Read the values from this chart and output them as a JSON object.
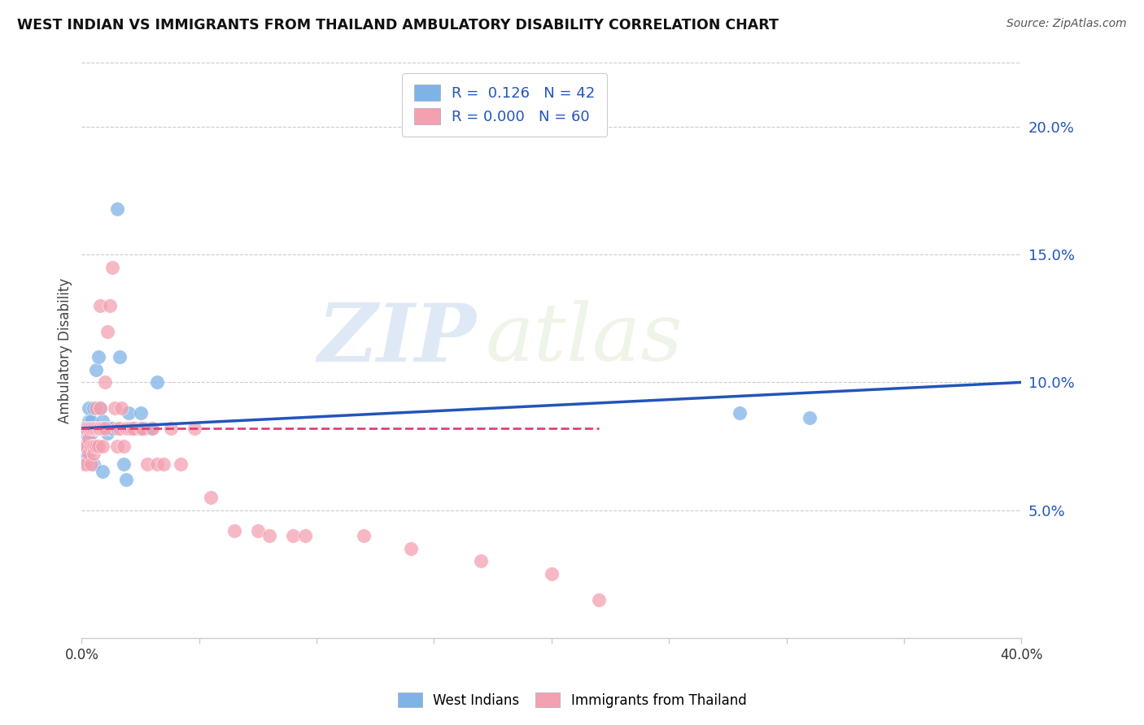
{
  "title": "WEST INDIAN VS IMMIGRANTS FROM THAILAND AMBULATORY DISABILITY CORRELATION CHART",
  "source": "Source: ZipAtlas.com",
  "ylabel": "Ambulatory Disability",
  "ylabel_right_ticks": [
    "20.0%",
    "15.0%",
    "10.0%",
    "5.0%"
  ],
  "ylabel_right_vals": [
    0.2,
    0.15,
    0.1,
    0.05
  ],
  "xlim": [
    0.0,
    0.4
  ],
  "ylim": [
    0.0,
    0.225
  ],
  "color_blue": "#7EB3E8",
  "color_pink": "#F4A0B0",
  "color_line_blue": "#2255BB",
  "color_line_pink": "#DD4477",
  "watermark_zip": "ZIP",
  "watermark_atlas": "atlas",
  "west_indians_x": [
    0.001,
    0.001,
    0.001,
    0.002,
    0.002,
    0.002,
    0.003,
    0.003,
    0.003,
    0.004,
    0.004,
    0.004,
    0.005,
    0.005,
    0.005,
    0.005,
    0.006,
    0.006,
    0.006,
    0.007,
    0.007,
    0.008,
    0.008,
    0.009,
    0.009,
    0.01,
    0.011,
    0.012,
    0.013,
    0.015,
    0.016,
    0.018,
    0.019,
    0.02,
    0.022,
    0.023,
    0.025,
    0.025,
    0.027,
    0.03,
    0.032,
    0.28,
    0.31
  ],
  "west_indians_y": [
    0.075,
    0.08,
    0.07,
    0.08,
    0.075,
    0.072,
    0.085,
    0.078,
    0.09,
    0.085,
    0.08,
    0.075,
    0.082,
    0.075,
    0.09,
    0.068,
    0.105,
    0.082,
    0.075,
    0.11,
    0.082,
    0.082,
    0.09,
    0.065,
    0.085,
    0.082,
    0.08,
    0.082,
    0.082,
    0.168,
    0.11,
    0.068,
    0.062,
    0.088,
    0.082,
    0.082,
    0.088,
    0.082,
    0.082,
    0.082,
    0.1,
    0.088,
    0.086
  ],
  "thailand_x": [
    0.001,
    0.001,
    0.001,
    0.002,
    0.002,
    0.002,
    0.003,
    0.003,
    0.003,
    0.004,
    0.004,
    0.004,
    0.005,
    0.005,
    0.005,
    0.006,
    0.006,
    0.006,
    0.007,
    0.007,
    0.008,
    0.008,
    0.008,
    0.009,
    0.009,
    0.01,
    0.01,
    0.011,
    0.012,
    0.013,
    0.014,
    0.015,
    0.015,
    0.016,
    0.017,
    0.018,
    0.019,
    0.02,
    0.021,
    0.022,
    0.025,
    0.026,
    0.028,
    0.03,
    0.032,
    0.035,
    0.038,
    0.042,
    0.048,
    0.055,
    0.065,
    0.075,
    0.08,
    0.09,
    0.095,
    0.12,
    0.14,
    0.17,
    0.2,
    0.22
  ],
  "thailand_y": [
    0.082,
    0.075,
    0.068,
    0.082,
    0.075,
    0.068,
    0.082,
    0.078,
    0.072,
    0.082,
    0.075,
    0.068,
    0.082,
    0.075,
    0.072,
    0.082,
    0.075,
    0.09,
    0.082,
    0.075,
    0.082,
    0.09,
    0.13,
    0.082,
    0.075,
    0.082,
    0.1,
    0.12,
    0.13,
    0.145,
    0.09,
    0.082,
    0.075,
    0.082,
    0.09,
    0.075,
    0.082,
    0.082,
    0.082,
    0.082,
    0.082,
    0.082,
    0.068,
    0.082,
    0.068,
    0.068,
    0.082,
    0.068,
    0.082,
    0.055,
    0.042,
    0.042,
    0.04,
    0.04,
    0.04,
    0.04,
    0.035,
    0.03,
    0.025,
    0.015
  ],
  "blue_line_x": [
    0.0,
    0.4
  ],
  "blue_line_y": [
    0.082,
    0.1
  ],
  "pink_line_x": [
    0.0,
    0.22
  ],
  "pink_line_y": [
    0.082,
    0.082
  ],
  "grid_color": "#cccccc",
  "spine_color": "#cccccc"
}
